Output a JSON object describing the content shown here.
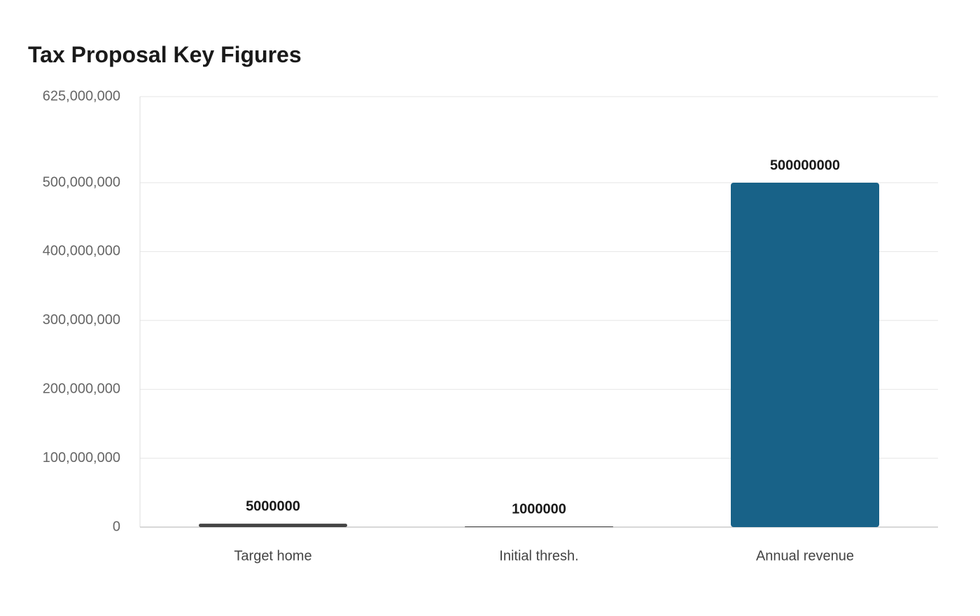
{
  "chart_data": {
    "type": "bar",
    "title": "Tax Proposal Key Figures",
    "xlabel": "",
    "ylabel": "",
    "categories": [
      "Target home",
      "Initial thresh.",
      "Annual revenue"
    ],
    "values": [
      5000000,
      1000000,
      500000000
    ],
    "value_labels": [
      "5000000",
      "1000000",
      "500000000"
    ],
    "ylim": [
      0,
      625000000
    ],
    "yticks": [
      0,
      100000000,
      200000000,
      300000000,
      400000000,
      500000000,
      625000000
    ],
    "ytick_labels": [
      "0",
      "100,000,000",
      "200,000,000",
      "300,000,000",
      "400,000,000",
      "500,000,000",
      "625,000,000"
    ],
    "bar_colors": [
      "#444444",
      "#444444",
      "#186288"
    ],
    "grid": true,
    "legend": "none"
  }
}
